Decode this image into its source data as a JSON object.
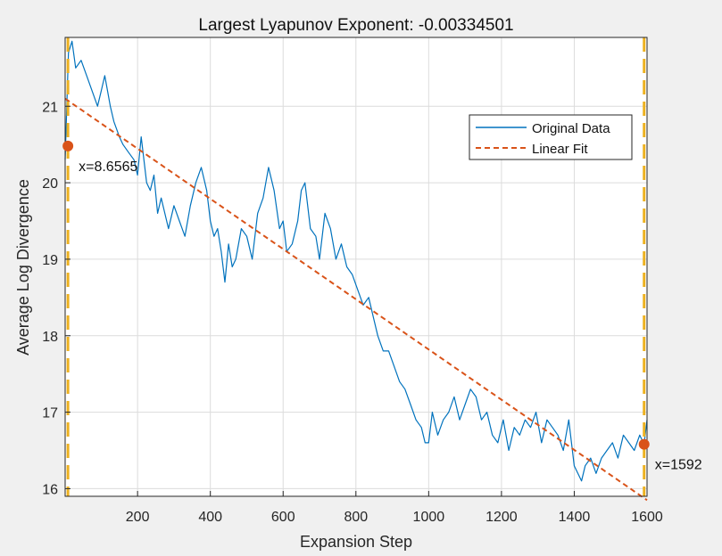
{
  "chart_data": {
    "type": "line",
    "title": "Largest Lyapunov Exponent: -0.00334501",
    "xlabel": "Expansion Step",
    "ylabel": "Average Log Divergence",
    "xlim": [
      1,
      1600
    ],
    "ylim": [
      15.9,
      21.9
    ],
    "xticks": [
      200,
      400,
      600,
      800,
      1000,
      1200,
      1400,
      1600
    ],
    "yticks": [
      16,
      17,
      18,
      19,
      20,
      21
    ],
    "grid": true,
    "legend_position": "top-right",
    "series": [
      {
        "name": "Original Data",
        "style": "solid",
        "color": "#0072BD",
        "x": [
          1,
          10,
          20,
          30,
          45,
          60,
          75,
          90,
          100,
          110,
          125,
          135,
          150,
          160,
          175,
          190,
          200,
          210,
          225,
          235,
          245,
          255,
          265,
          275,
          285,
          300,
          315,
          330,
          345,
          360,
          375,
          390,
          400,
          410,
          420,
          430,
          440,
          450,
          460,
          470,
          485,
          500,
          515,
          530,
          545,
          560,
          575,
          590,
          600,
          610,
          625,
          640,
          650,
          660,
          675,
          690,
          700,
          715,
          730,
          745,
          760,
          775,
          790,
          805,
          820,
          835,
          850,
          860,
          875,
          890,
          905,
          920,
          935,
          950,
          965,
          980,
          990,
          1000,
          1010,
          1025,
          1040,
          1055,
          1070,
          1085,
          1100,
          1115,
          1130,
          1145,
          1160,
          1175,
          1190,
          1205,
          1220,
          1235,
          1250,
          1265,
          1280,
          1295,
          1310,
          1325,
          1340,
          1355,
          1370,
          1385,
          1400,
          1410,
          1420,
          1430,
          1445,
          1460,
          1475,
          1490,
          1505,
          1520,
          1535,
          1550,
          1565,
          1580,
          1592,
          1600
        ],
        "values": [
          20.3,
          21.7,
          21.85,
          21.5,
          21.6,
          21.4,
          21.2,
          21.0,
          21.2,
          21.4,
          21.0,
          20.8,
          20.6,
          20.5,
          20.4,
          20.3,
          20.1,
          20.6,
          20.0,
          19.9,
          20.1,
          19.6,
          19.8,
          19.6,
          19.4,
          19.7,
          19.5,
          19.3,
          19.7,
          20.0,
          20.2,
          19.9,
          19.5,
          19.3,
          19.4,
          19.1,
          18.7,
          19.2,
          18.9,
          19.0,
          19.4,
          19.3,
          19.0,
          19.6,
          19.8,
          20.2,
          19.9,
          19.4,
          19.5,
          19.1,
          19.2,
          19.5,
          19.9,
          20.0,
          19.4,
          19.3,
          19.0,
          19.6,
          19.4,
          19.0,
          19.2,
          18.9,
          18.8,
          18.6,
          18.4,
          18.5,
          18.2,
          18.0,
          17.8,
          17.8,
          17.6,
          17.4,
          17.3,
          17.1,
          16.9,
          16.8,
          16.6,
          16.6,
          17.0,
          16.7,
          16.9,
          17.0,
          17.2,
          16.9,
          17.1,
          17.3,
          17.2,
          16.9,
          17.0,
          16.7,
          16.6,
          16.9,
          16.5,
          16.8,
          16.7,
          16.9,
          16.8,
          17.0,
          16.6,
          16.9,
          16.8,
          16.7,
          16.5,
          16.9,
          16.3,
          16.2,
          16.1,
          16.3,
          16.4,
          16.2,
          16.4,
          16.5,
          16.6,
          16.4,
          16.7,
          16.6,
          16.5,
          16.7,
          16.58,
          16.9
        ]
      },
      {
        "name": "Linear Fit",
        "style": "dashed",
        "color": "#D95319",
        "x": [
          1,
          1600
        ],
        "values": [
          21.1,
          15.85
        ]
      }
    ],
    "data_tips": [
      {
        "label": "x=8.6565",
        "x": 8.6565,
        "y": 20.48
      },
      {
        "label": "x=1592",
        "x": 1592,
        "y": 16.58
      }
    ],
    "cursor_lines": [
      {
        "x": 8.6565,
        "color": "#EDB120"
      },
      {
        "x": 1592,
        "color": "#EDB120"
      }
    ]
  }
}
